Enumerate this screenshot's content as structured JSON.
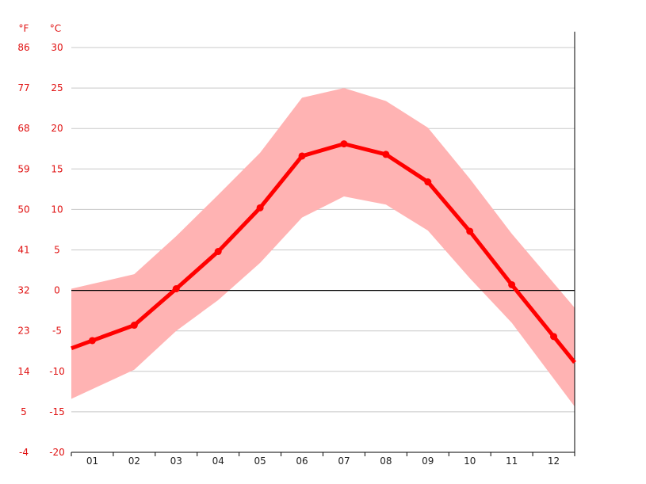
{
  "chart_data": {
    "type": "line",
    "categories": [
      "01",
      "02",
      "03",
      "04",
      "05",
      "06",
      "07",
      "08",
      "09",
      "10",
      "11",
      "12"
    ],
    "series": [
      {
        "values": [
          -6.2,
          -4.3,
          0.2,
          4.8,
          10.2,
          16.6,
          18.1,
          16.8,
          13.4,
          7.3,
          0.7,
          -5.7
        ],
        "color": "#ff0000"
      }
    ],
    "range_max": [
      0.8,
      2.0,
      6.7,
      11.8,
      17.0,
      23.8,
      25.0,
      23.4,
      20.1,
      13.8,
      7.0,
      0.9
    ],
    "range_min": [
      -12.2,
      -9.8,
      -5.0,
      -1.2,
      3.4,
      9.0,
      11.6,
      10.6,
      7.4,
      1.5,
      -4.0,
      -10.9
    ],
    "range_color": "#ffb3b3",
    "y_left_unit": "°F",
    "y_right_unit": "°C",
    "y_ticks_f": [
      "86",
      "77",
      "68",
      "59",
      "50",
      "41",
      "32",
      "23",
      "14",
      "5",
      "-4"
    ],
    "y_ticks_c": [
      "30",
      "25",
      "20",
      "15",
      "10",
      "5",
      "0",
      "-5",
      "-10",
      "-15",
      "-20"
    ],
    "ylim": [
      -20,
      30
    ],
    "grid": true,
    "zero_line": true
  }
}
